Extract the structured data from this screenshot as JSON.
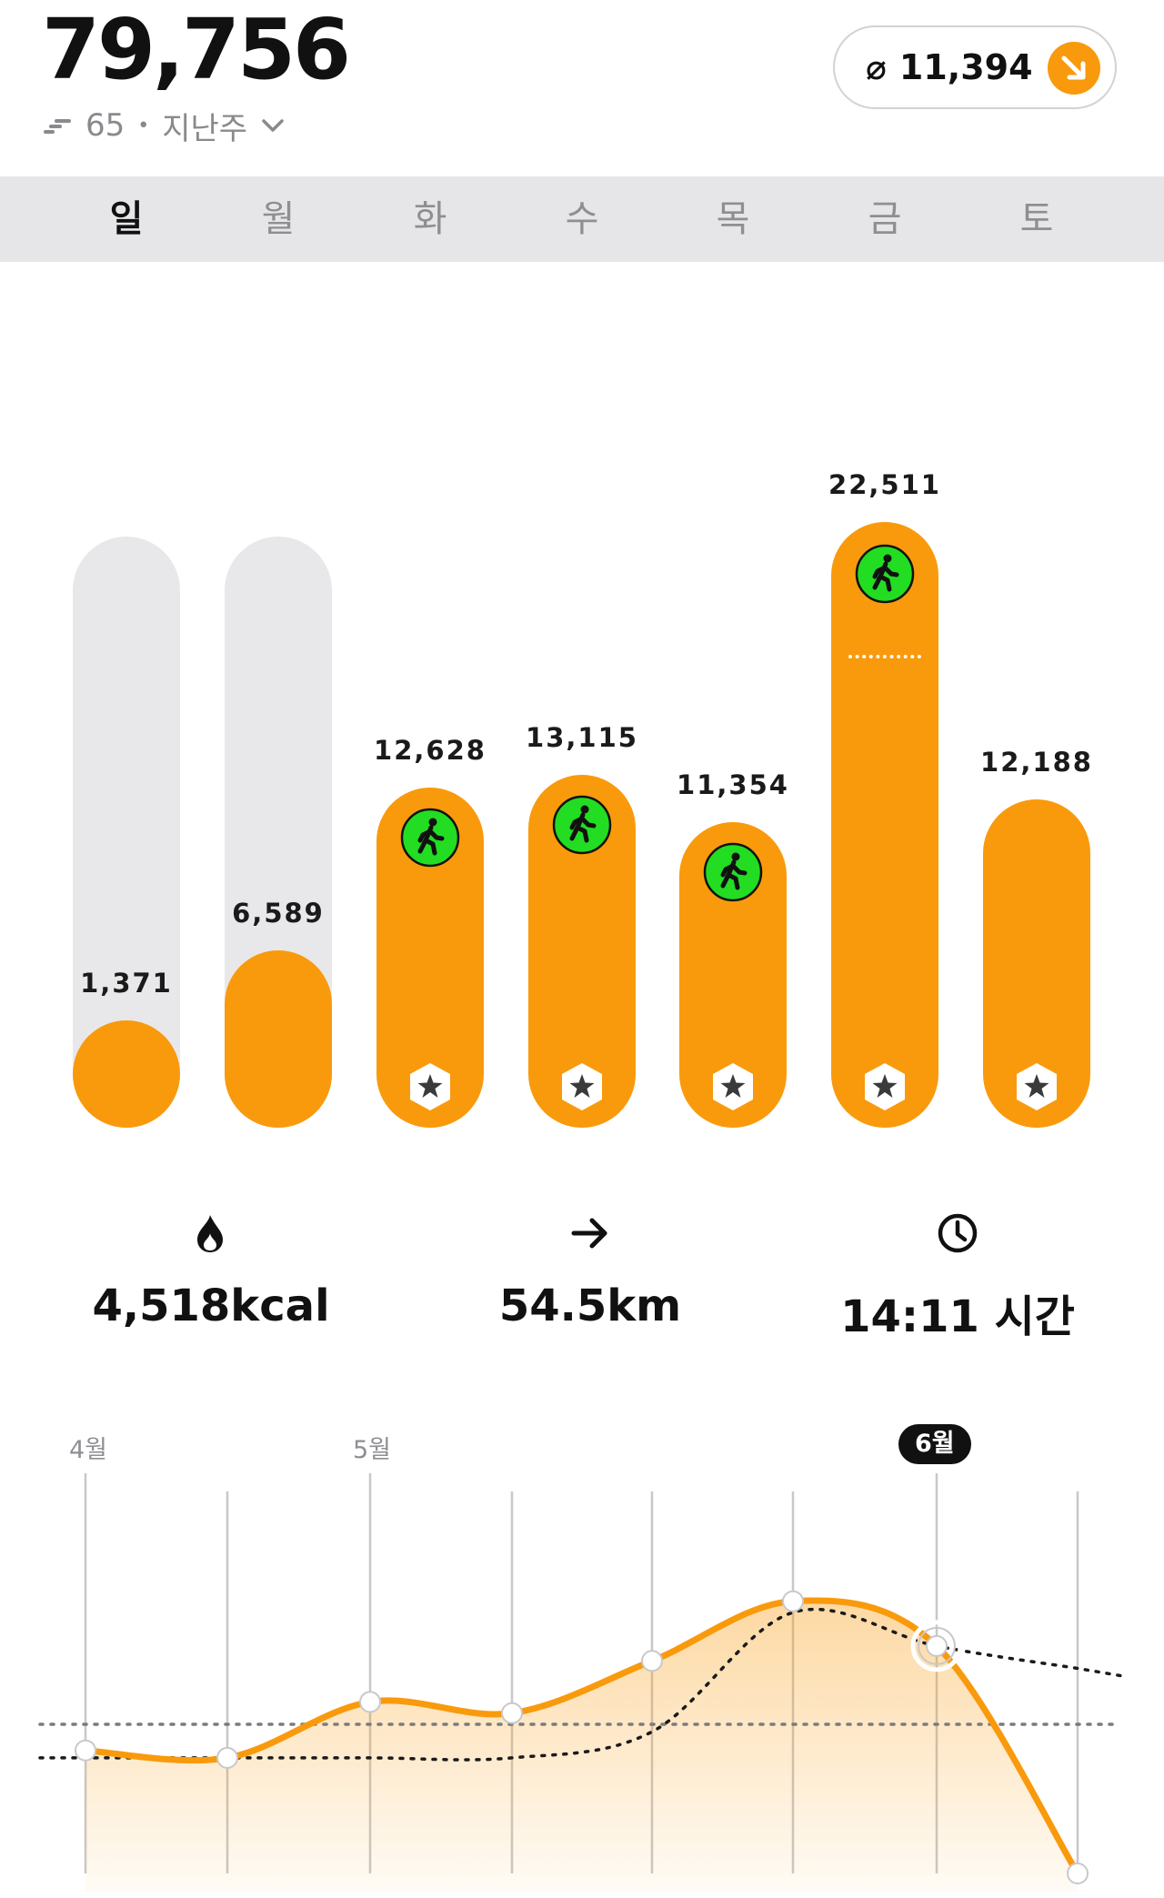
{
  "header": {
    "total": "79,756",
    "rank": "65",
    "period": "지난주",
    "average": "11,394",
    "avg_symbol": "⌀",
    "trend_icon": "arrow-down-right-icon",
    "accent": "#f99a0c"
  },
  "weekdays": [
    {
      "label": "일",
      "active": true
    },
    {
      "label": "월",
      "active": false
    },
    {
      "label": "화",
      "active": false
    },
    {
      "label": "수",
      "active": false
    },
    {
      "label": "목",
      "active": false
    },
    {
      "label": "금",
      "active": false
    },
    {
      "label": "토",
      "active": false
    }
  ],
  "chart_data": {
    "type": "bar",
    "categories": [
      "일",
      "월",
      "화",
      "수",
      "목",
      "금",
      "토"
    ],
    "values": [
      1371,
      6589,
      12628,
      13115,
      11354,
      22511,
      12188
    ],
    "value_labels": [
      "1,371",
      "6,589",
      "12,628",
      "13,115",
      "11,354",
      "22,511",
      "12,188"
    ],
    "goal_reached": [
      false,
      false,
      true,
      true,
      true,
      true,
      true
    ],
    "workout": [
      false,
      false,
      true,
      true,
      true,
      true,
      false
    ],
    "colors": {
      "fill": "#f99a0c",
      "track": "#e8e8ea",
      "workout": "#22dd22"
    }
  },
  "stats": {
    "calories": {
      "value": "4,518kcal",
      "icon": "flame-icon"
    },
    "distance": {
      "value": "54.5km",
      "icon": "arrow-right-icon"
    },
    "duration": {
      "value": "14:11 시간",
      "icon": "clock-icon"
    }
  },
  "trend": {
    "months": [
      "4월",
      "5월",
      "6월"
    ],
    "active_month": "6월",
    "weekly_steps_level": [
      0.33,
      0.31,
      0.46,
      0.43,
      0.57,
      0.73,
      0.61,
      0.0
    ],
    "average_level": [
      0.31,
      0.31,
      0.31,
      0.31,
      0.38,
      0.7,
      0.61,
      0.55
    ],
    "reference_level": 0.4
  }
}
